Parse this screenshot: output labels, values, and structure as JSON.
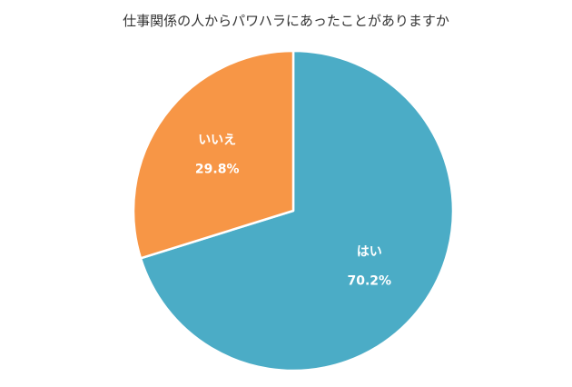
{
  "chart_data": {
    "type": "pie",
    "title": "仕事関係の人からパワハラにあったことがありますか",
    "slices": [
      {
        "label": "はい",
        "value": 70.2,
        "value_label": "70.2%",
        "color": "#4bacc6"
      },
      {
        "label": "いいえ",
        "value": 29.8,
        "value_label": "29.8%",
        "color": "#f79646"
      }
    ]
  }
}
